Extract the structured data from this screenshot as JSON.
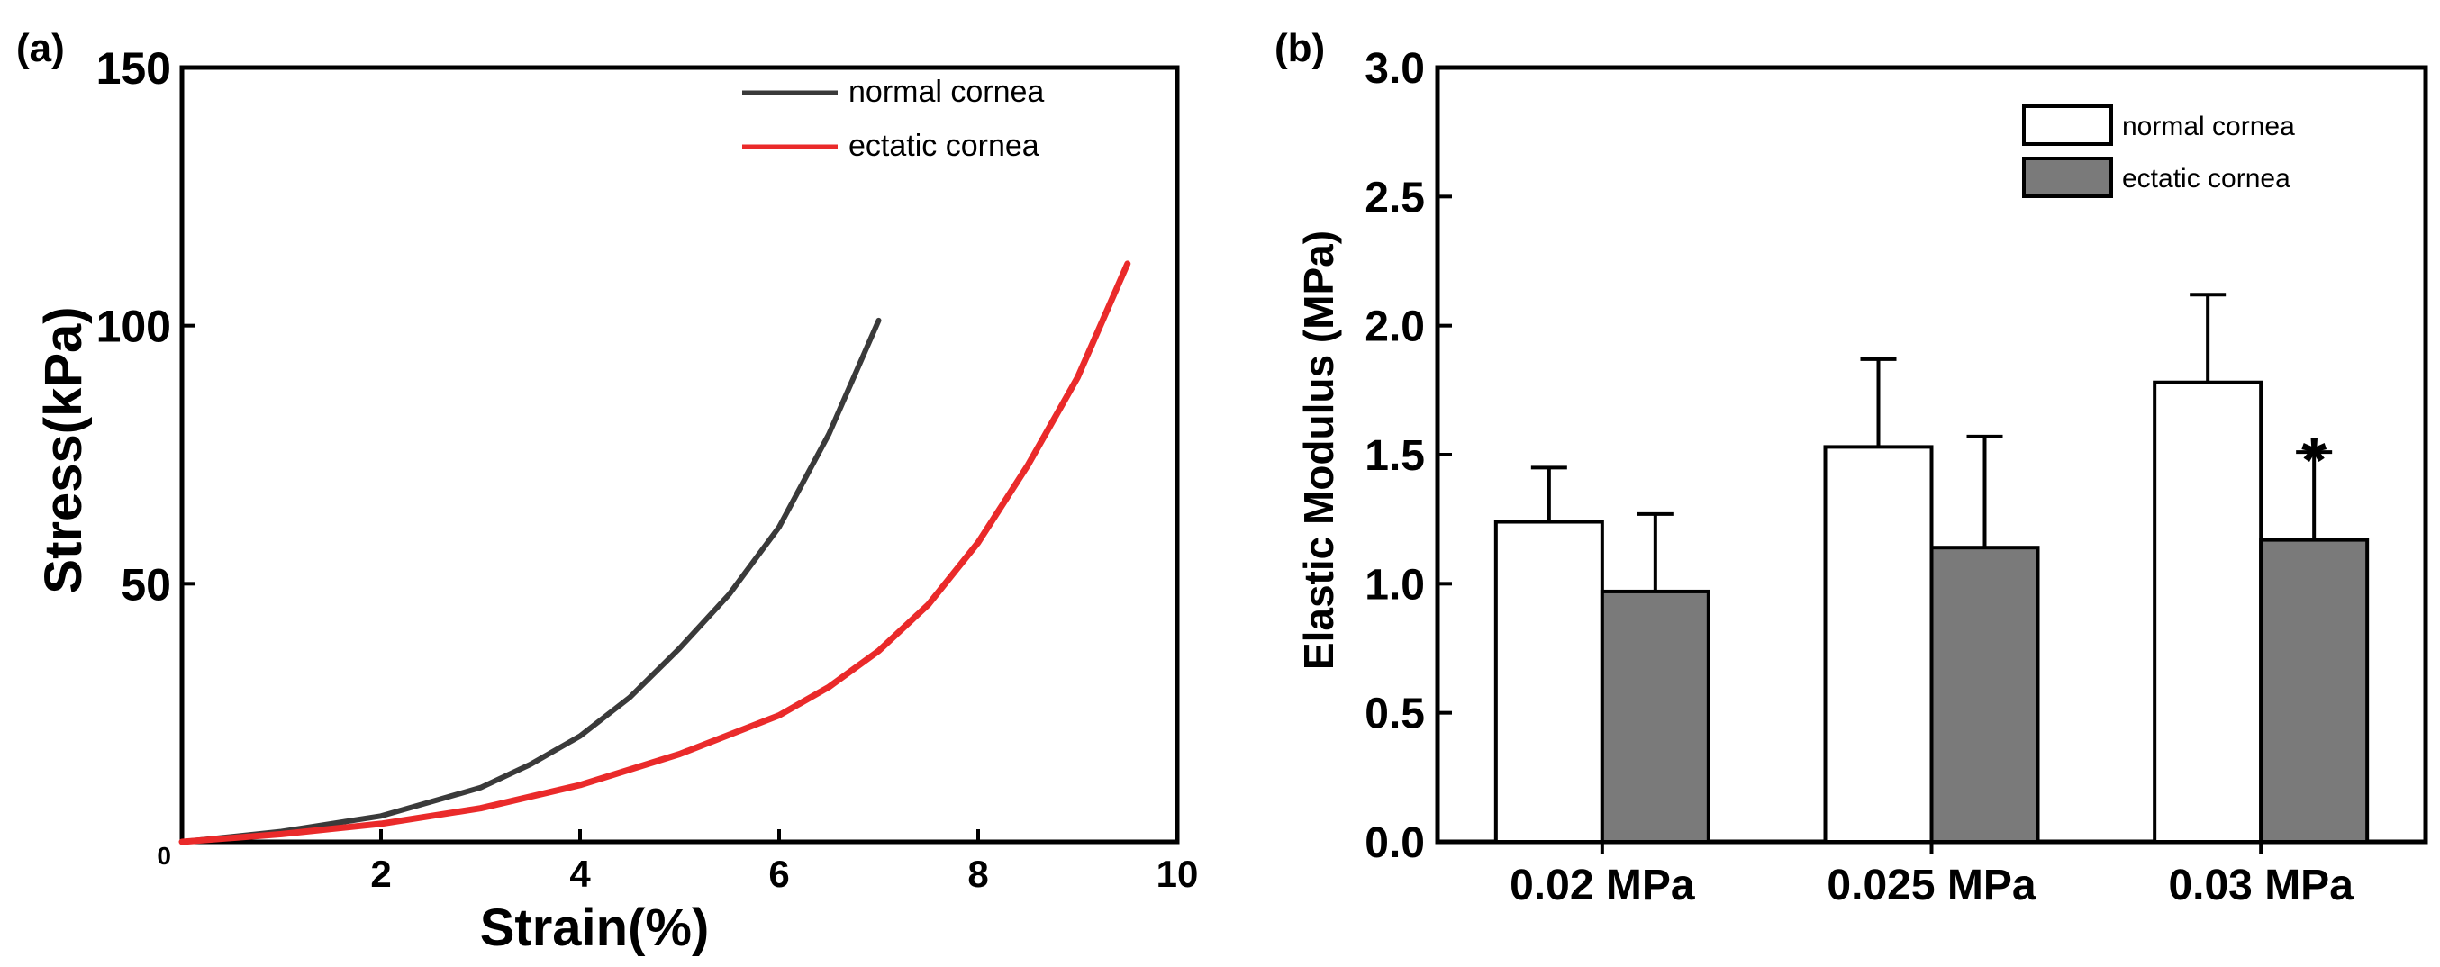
{
  "chart_data": [
    {
      "type": "line",
      "panel_label": "(a)",
      "xlabel": "Strain(%)",
      "ylabel": "Stress(kPa)",
      "xlim": [
        0,
        10
      ],
      "ylim": [
        0,
        150
      ],
      "x_ticks": [
        "0",
        "2",
        "4",
        "6",
        "8",
        "10"
      ],
      "y_ticks": [
        "50",
        "100",
        "150"
      ],
      "legend_position": "top-right",
      "series": [
        {
          "name": "normal cornea",
          "color": "#3a3a3a",
          "x": [
            0,
            1,
            2,
            3,
            3.5,
            4,
            4.5,
            5,
            5.5,
            6,
            6.5,
            7.0
          ],
          "y": [
            0,
            2,
            5,
            10.5,
            15,
            20.5,
            28,
            37.5,
            48,
            61,
            79,
            101
          ]
        },
        {
          "name": "ectatic cornea",
          "color": "#ea2a2a",
          "x": [
            0,
            1,
            2,
            3,
            4,
            5,
            6,
            6.5,
            7,
            7.5,
            8,
            8.5,
            9,
            9.5
          ],
          "y": [
            0,
            1.5,
            3.5,
            6.5,
            11,
            17,
            24.5,
            30,
            37,
            46,
            58,
            73,
            90,
            112
          ]
        }
      ]
    },
    {
      "type": "bar",
      "panel_label": "(b)",
      "xlabel": "",
      "ylabel": "Elastic Modulus (MPa)",
      "ylim": [
        0,
        3.0
      ],
      "y_ticks": [
        "0.0",
        "0.5",
        "1.0",
        "1.5",
        "2.0",
        "2.5",
        "3.0"
      ],
      "categories": [
        "0.02 MPa",
        "0.025 MPa",
        "0.03 MPa"
      ],
      "legend_position": "top-right",
      "series": [
        {
          "name": "normal cornea",
          "color": "#ffffff",
          "values": [
            1.24,
            1.53,
            1.78
          ],
          "errors": [
            0.21,
            0.34,
            0.34
          ]
        },
        {
          "name": "ectatic cornea",
          "color": "#7a7a7a",
          "values": [
            0.97,
            1.14,
            1.17
          ],
          "errors": [
            0.3,
            0.43,
            0.34
          ]
        }
      ],
      "annotations": [
        {
          "text": "*",
          "category": "0.03 MPa",
          "series": "ectatic cornea"
        }
      ]
    }
  ]
}
